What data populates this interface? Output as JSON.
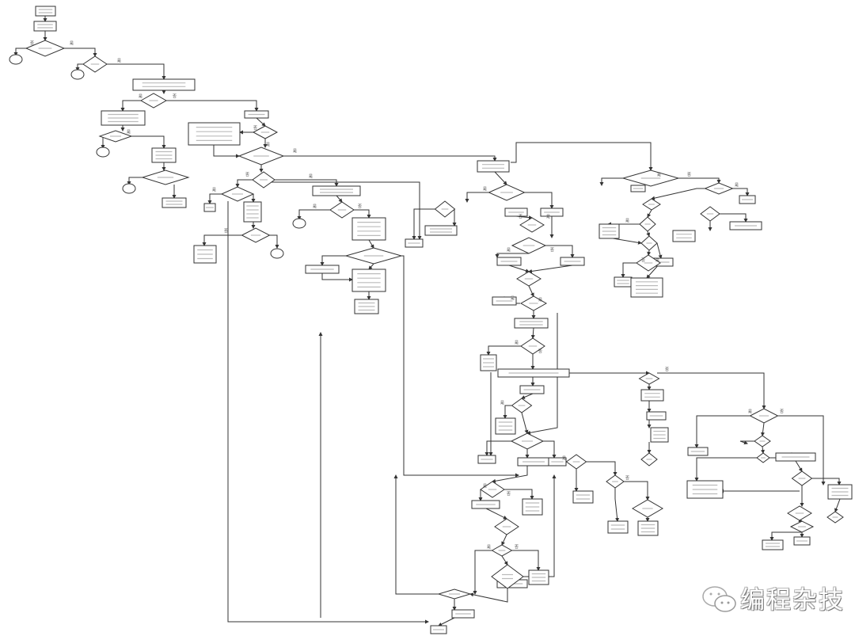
{
  "diagram": {
    "type": "flowchart",
    "branch_labels": {
      "yes": "是",
      "no": "否"
    },
    "line_color": "#333333",
    "shape_fill": "#ffffff"
  },
  "watermark": {
    "text": "编程杂技",
    "icon": "wechat-icon"
  }
}
